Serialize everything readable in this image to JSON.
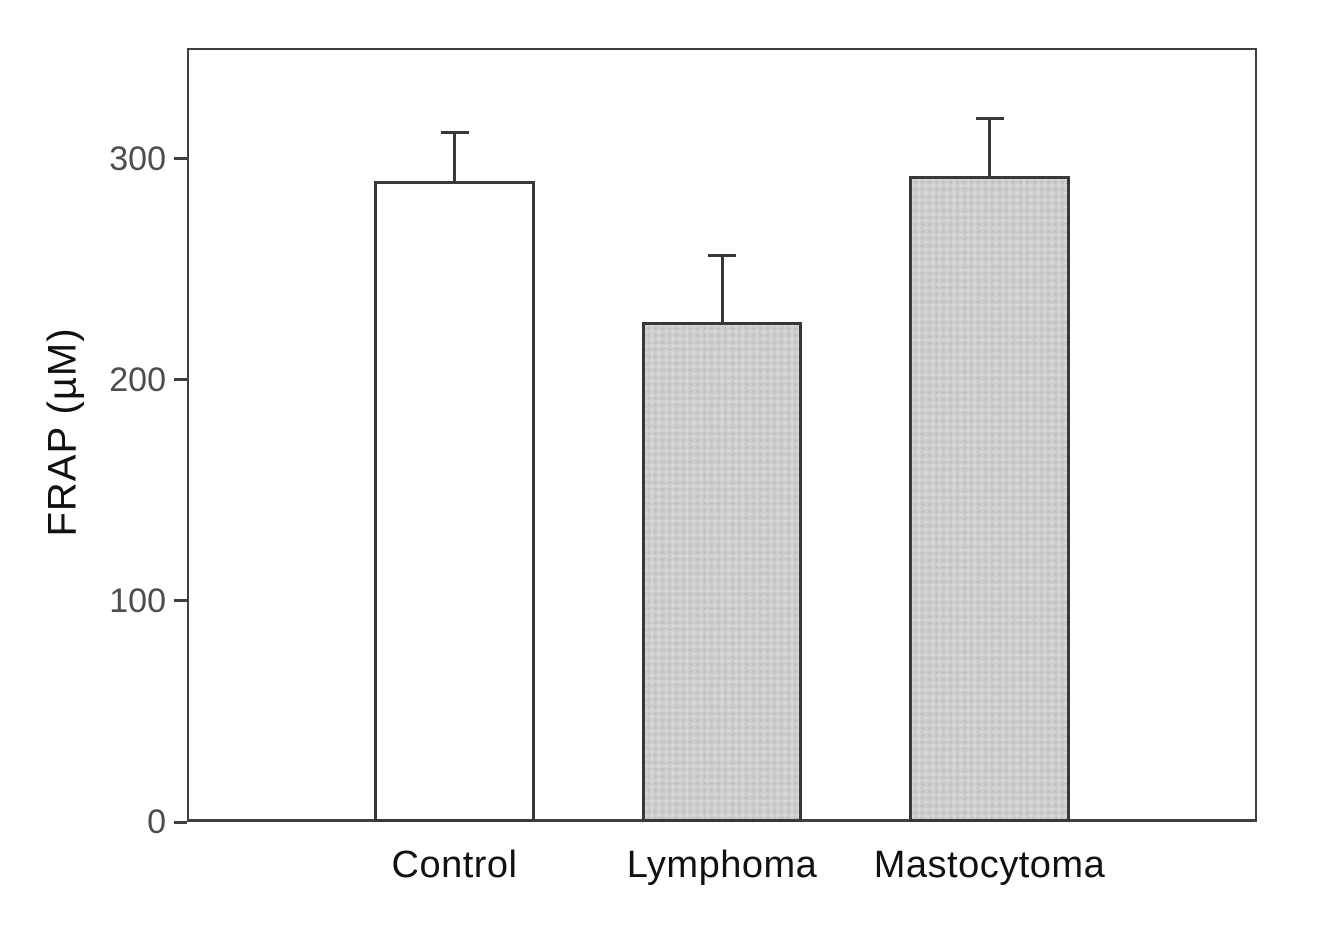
{
  "chart_data": {
    "type": "bar",
    "title": "",
    "xlabel": "",
    "ylabel": "FRAP (µM)",
    "categories": [
      "Control",
      "Lymphoma",
      "Mastocytoma"
    ],
    "values": [
      290,
      226,
      292
    ],
    "errors": [
      22,
      30,
      26
    ],
    "error_tops": [
      312,
      256,
      318
    ],
    "ylim": [
      0,
      350
    ],
    "yticks": [
      0,
      100,
      200,
      300
    ],
    "grid": false,
    "legend": "none",
    "bar_fills": [
      "white",
      "stipple-gray",
      "stipple-gray"
    ],
    "bar_border_color": "#383838",
    "frame_color": "#404040",
    "stipple_base_color": "#cfcfcf",
    "background_color": "#ffffff",
    "tick_label_color": "#4d4d4d",
    "category_label_color": "#111111"
  }
}
